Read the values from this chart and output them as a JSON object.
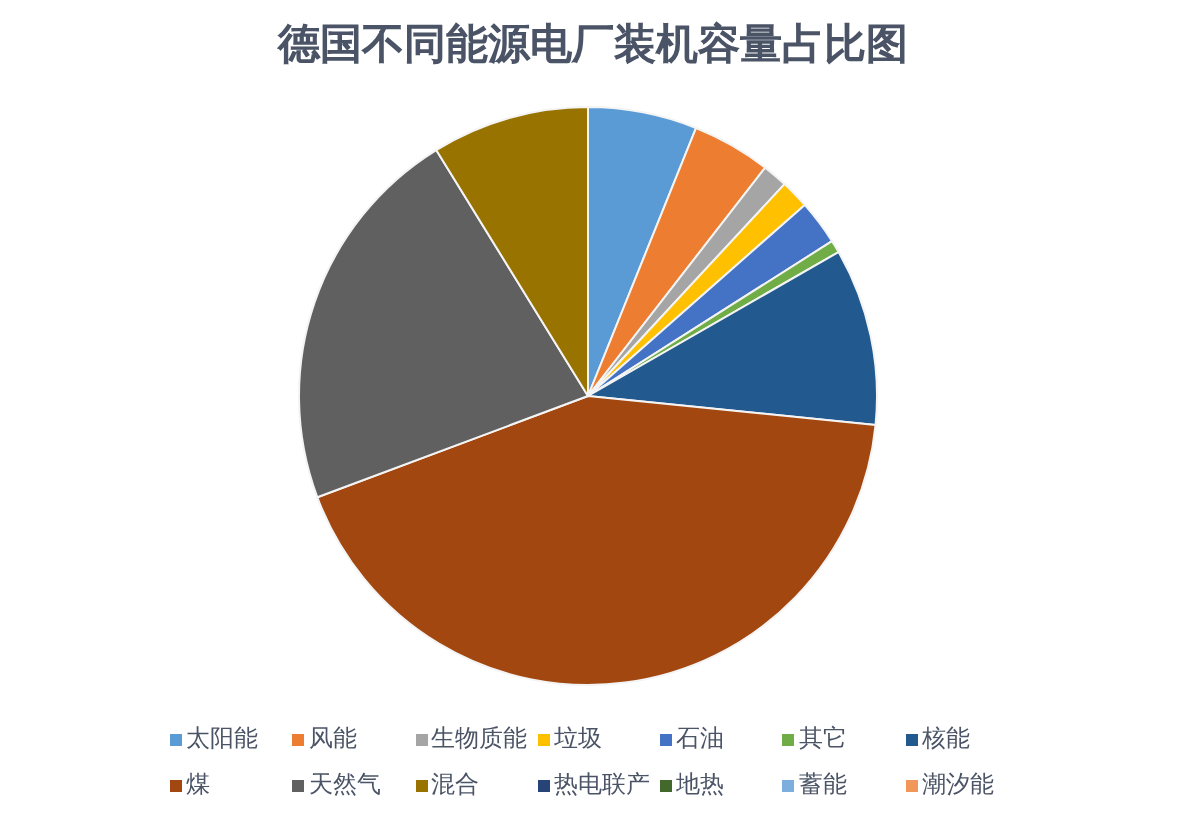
{
  "chart_data": {
    "type": "pie",
    "title": "德国不同能源电厂装机容量占比图",
    "categories": [
      "太阳能",
      "风能",
      "生物质能",
      "垃圾",
      "石油",
      "其它",
      "核能",
      "煤",
      "天然气",
      "混合",
      "热电联产",
      "地热",
      "蓄能",
      "潮汐能"
    ],
    "values": [
      6.1,
      4.4,
      1.4,
      1.6,
      2.5,
      0.7,
      9.9,
      42.7,
      21.9,
      8.8,
      0,
      0,
      0,
      0
    ],
    "colors": [
      "#5b9bd5",
      "#ed7d31",
      "#a5a5a5",
      "#ffc000",
      "#4472c4",
      "#70ad47",
      "#22598f",
      "#a2470f",
      "#606060",
      "#997300",
      "#264478",
      "#43682b",
      "#7cafdd",
      "#f1975a"
    ],
    "legend": "bottom"
  }
}
